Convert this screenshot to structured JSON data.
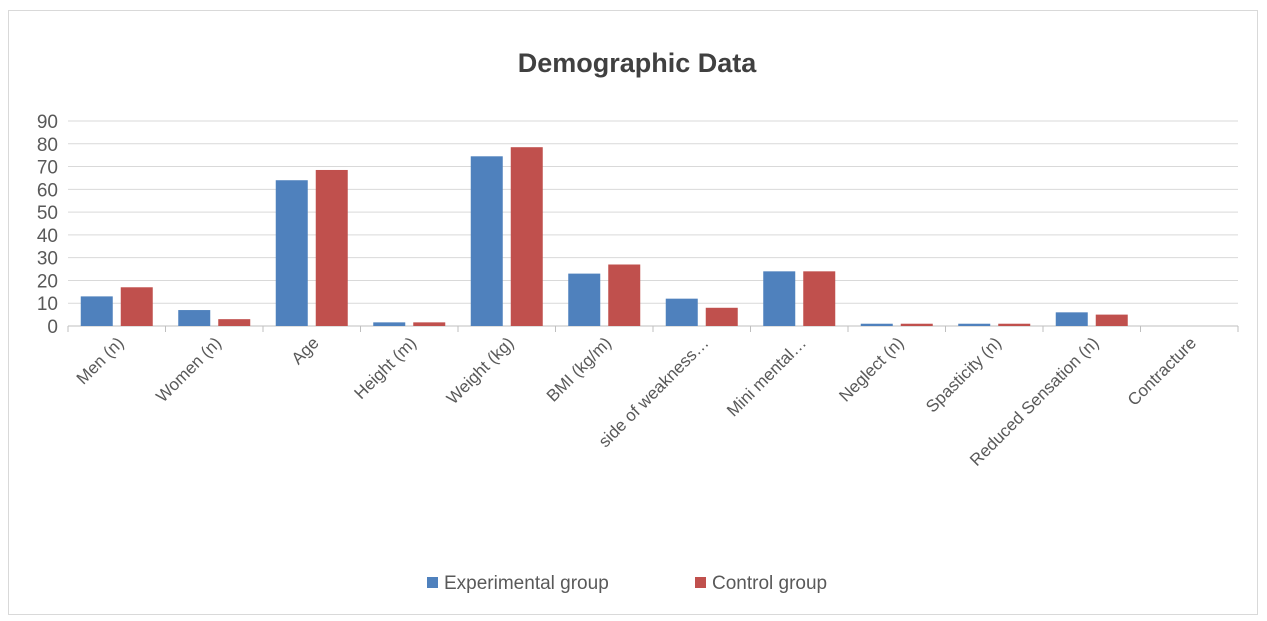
{
  "chart_data": {
    "type": "bar",
    "title": "Demographic Data",
    "xlabel": "",
    "ylabel": "",
    "ylim": [
      0,
      90
    ],
    "yticks": [
      0,
      10,
      20,
      30,
      40,
      50,
      60,
      70,
      80,
      90
    ],
    "grid": true,
    "legend_position": "bottom",
    "categories": [
      "Men (n)",
      "Women (n)",
      "Age",
      "Height (m)",
      "Weight (kg)",
      "BMI (kg/m)",
      "side of weakness…",
      "Mini mental…",
      "Neglect (n)",
      "Spasticity (n)",
      "Reduced Sensation (n)",
      "Contracture"
    ],
    "series": [
      {
        "name": "Experimental group",
        "color": "#4f81bd",
        "values": [
          13,
          7,
          64,
          1.6,
          74.5,
          23,
          12,
          24,
          1,
          1,
          6,
          0
        ]
      },
      {
        "name": "Control group",
        "color": "#c0504d",
        "values": [
          17,
          3,
          68.5,
          1.6,
          78.5,
          27,
          8,
          24,
          1,
          1,
          5,
          0
        ]
      }
    ]
  }
}
